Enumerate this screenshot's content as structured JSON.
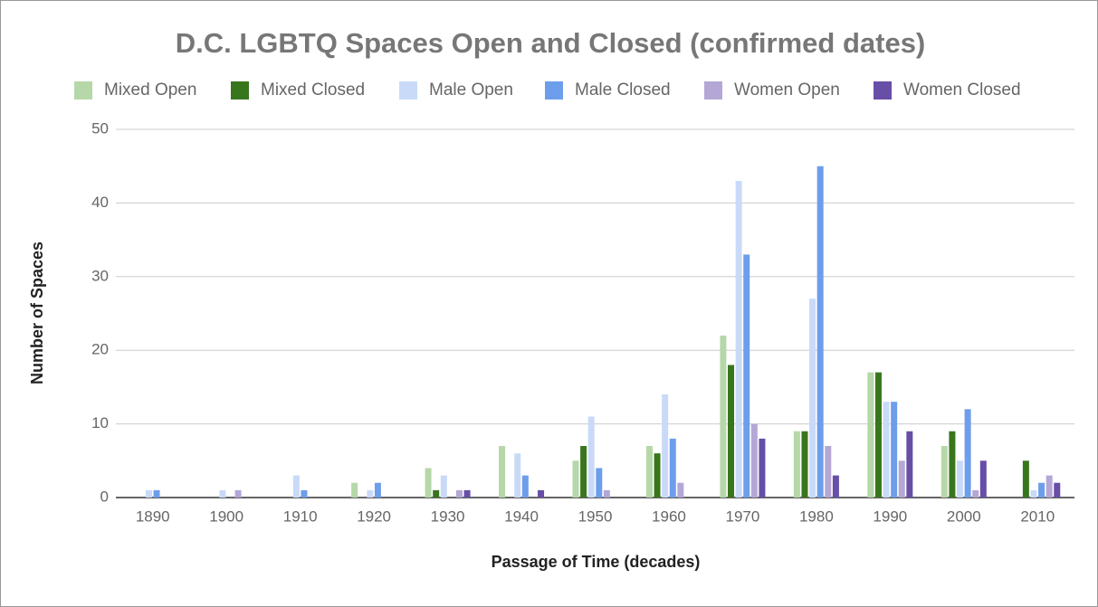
{
  "chart_data": {
    "type": "bar",
    "title": "D.C. LGBTQ Spaces Open and Closed (confirmed dates)",
    "x_label": "Passage of Time (decades)",
    "y_label": "Number of Spaces",
    "categories": [
      "1890",
      "1900",
      "1910",
      "1920",
      "1930",
      "1940",
      "1950",
      "1960",
      "1970",
      "1980",
      "1990",
      "2000",
      "2010"
    ],
    "series": [
      {
        "name": "Mixed Open",
        "color": "#b6d7a8",
        "values": [
          0,
          0,
          0,
          2,
          4,
          7,
          5,
          7,
          22,
          9,
          17,
          7,
          0
        ]
      },
      {
        "name": "Mixed Closed",
        "color": "#38761d",
        "values": [
          0,
          0,
          0,
          0,
          1,
          0,
          7,
          6,
          18,
          9,
          17,
          9,
          5
        ]
      },
      {
        "name": "Male Open",
        "color": "#c9daf8",
        "values": [
          1,
          1,
          3,
          1,
          3,
          6,
          11,
          14,
          43,
          27,
          13,
          5,
          1
        ]
      },
      {
        "name": "Male Closed",
        "color": "#6d9eeb",
        "values": [
          1,
          0,
          1,
          2,
          0,
          3,
          4,
          8,
          33,
          45,
          13,
          12,
          2
        ]
      },
      {
        "name": "Women Open",
        "color": "#b4a7d6",
        "values": [
          0,
          1,
          0,
          0,
          1,
          0,
          1,
          2,
          10,
          7,
          5,
          1,
          3
        ]
      },
      {
        "name": "Women Closed",
        "color": "#674ea7",
        "values": [
          0,
          0,
          0,
          0,
          1,
          1,
          0,
          0,
          8,
          3,
          9,
          5,
          2
        ]
      }
    ],
    "ylim": [
      0,
      50
    ],
    "yticks": [
      0,
      10,
      20,
      30,
      40,
      50
    ],
    "grid": true,
    "legend": "top"
  }
}
